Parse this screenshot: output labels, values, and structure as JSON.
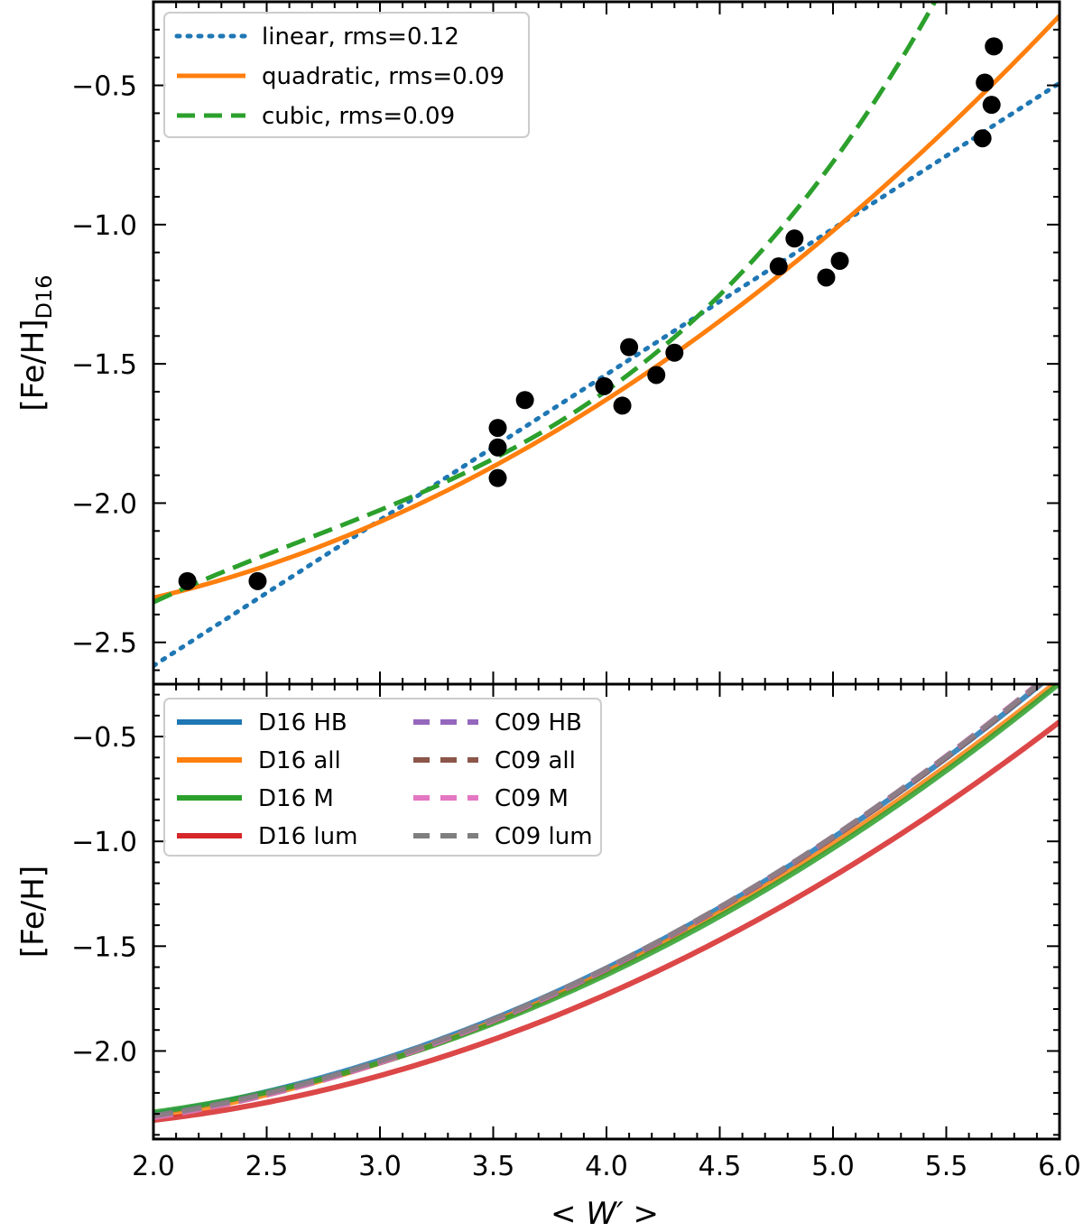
{
  "chart_data": [
    {
      "type": "line",
      "panel": "top",
      "title": "",
      "xlabel": "",
      "ylabel": "[Fe/H]",
      "ylabel_subscript": "D16",
      "xlim": [
        2.0,
        6.0
      ],
      "ylim": [
        -2.65,
        -0.2
      ],
      "xticks": [
        2.0,
        2.5,
        3.0,
        3.5,
        4.0,
        4.5,
        5.0,
        5.5,
        6.0
      ],
      "yticks": [
        -2.5,
        -2.0,
        -1.5,
        -1.0,
        -0.5
      ],
      "ytick_labels": [
        "−2.5",
        "−2.0",
        "−1.5",
        "−1.0",
        "−0.5"
      ],
      "legend_position": "upper-left",
      "legend_columns": 1,
      "series": [
        {
          "name": "linear, rms=0.12",
          "style": "dotted",
          "color": "#1f77b4",
          "model": "poly",
          "coeffs": [
            -3.63,
            0.523
          ]
        },
        {
          "name": "quadratic, rms=0.09",
          "style": "solid",
          "color": "#ff7f0e",
          "model": "poly",
          "coeffs": [
            -2.385,
            -0.144,
            0.0833
          ]
        },
        {
          "name": "cubic, rms=0.09",
          "style": "dashed",
          "color": "#2ca02c",
          "model": "poly",
          "coeffs": [
            -3.9,
            1.36,
            -0.392,
            0.049
          ]
        }
      ],
      "points": {
        "name": "clusters",
        "color": "#000000",
        "x": [
          2.15,
          2.46,
          3.52,
          3.52,
          3.52,
          3.64,
          3.99,
          4.07,
          4.1,
          4.22,
          4.3,
          4.76,
          4.83,
          4.97,
          5.03,
          5.66,
          5.67,
          5.7,
          5.71
        ],
        "y": [
          -2.28,
          -2.28,
          -1.73,
          -1.8,
          -1.91,
          -1.63,
          -1.58,
          -1.65,
          -1.44,
          -1.54,
          -1.46,
          -1.15,
          -1.05,
          -1.19,
          -1.13,
          -0.69,
          -0.49,
          -0.57,
          -0.36
        ]
      }
    },
    {
      "type": "line",
      "panel": "bottom",
      "title": "",
      "xlabel": "< W′ >",
      "ylabel": "[Fe/H]",
      "xlim": [
        2.0,
        6.0
      ],
      "ylim": [
        -2.42,
        -0.25
      ],
      "xticks": [
        2.0,
        2.5,
        3.0,
        3.5,
        4.0,
        4.5,
        5.0,
        5.5,
        6.0
      ],
      "xtick_labels": [
        "2.0",
        "2.5",
        "3.0",
        "3.5",
        "4.0",
        "4.5",
        "5.0",
        "5.5",
        "6.0"
      ],
      "yticks": [
        -2.0,
        -1.5,
        -1.0,
        -0.5
      ],
      "ytick_labels": [
        "−2.0",
        "−1.5",
        "−1.0",
        "−0.5"
      ],
      "legend_position": "upper-left",
      "legend_columns": 2,
      "series": [
        {
          "name": "D16 HB",
          "style": "solid",
          "color": "#1f77b4",
          "model": "poly",
          "coeffs": [
            -2.26,
            -0.203,
            0.0917
          ]
        },
        {
          "name": "D16 all",
          "style": "solid",
          "color": "#ff7f0e",
          "model": "poly",
          "coeffs": [
            -2.31,
            -0.178,
            0.0875
          ]
        },
        {
          "name": "D16 M",
          "style": "solid",
          "color": "#2ca02c",
          "model": "poly",
          "coeffs": [
            -2.215,
            -0.222,
            0.0917
          ]
        },
        {
          "name": "D16 lum",
          "style": "solid",
          "color": "#d62728",
          "model": "poly",
          "coeffs": [
            -2.23,
            -0.225,
            0.0875
          ]
        },
        {
          "name": "C09 HB",
          "style": "dashed",
          "color": "#9467bd",
          "model": "poly",
          "coeffs": [
            -2.27,
            -0.205,
            0.0925
          ]
        },
        {
          "name": "C09 all",
          "style": "dashed",
          "color": "#8c564b",
          "model": "poly",
          "coeffs": [
            -2.29,
            -0.197,
            0.0917
          ]
        },
        {
          "name": "C09 M",
          "style": "dashed",
          "color": "#e377c2",
          "model": "poly",
          "coeffs": [
            -2.29,
            -0.198,
            0.0921
          ]
        },
        {
          "name": "C09 lum",
          "style": "dashed",
          "color": "#7f7f7f",
          "model": "poly",
          "coeffs": [
            -2.28,
            -0.198,
            0.0917
          ]
        }
      ]
    }
  ]
}
